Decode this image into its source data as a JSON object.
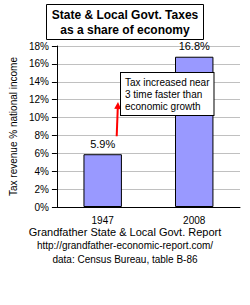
{
  "chart_data": {
    "type": "bar",
    "title": "State & Local Govt. Taxes\nas a share of economy",
    "y_label": "Tax revenue % national income",
    "categories": [
      "1947",
      "2008"
    ],
    "values": [
      5.9,
      16.8
    ],
    "value_labels": [
      "5.9%",
      "16.8%"
    ],
    "data_labels": true,
    "color": "#9999ff",
    "ylim": [
      0,
      18
    ],
    "yticks": [
      {
        "value": 0,
        "label": "0%"
      },
      {
        "value": 2,
        "label": "2%"
      },
      {
        "value": 4,
        "label": "4%"
      },
      {
        "value": 6,
        "label": "6%"
      },
      {
        "value": 8,
        "label": "8%"
      },
      {
        "value": 10,
        "label": "10%"
      },
      {
        "value": 12,
        "label": "12%"
      },
      {
        "value": 14,
        "label": "14%"
      },
      {
        "value": 16,
        "label": "16%"
      },
      {
        "value": 18,
        "label": "18%"
      }
    ],
    "grid": true,
    "annotation": "Tax increased near\n3 time faster than\neconomic growth",
    "source": [
      "Grandfather State & Local Govt. Report",
      "http://grandfather-economic-report.com/",
      "data: Census Bureau, table B-86"
    ]
  }
}
